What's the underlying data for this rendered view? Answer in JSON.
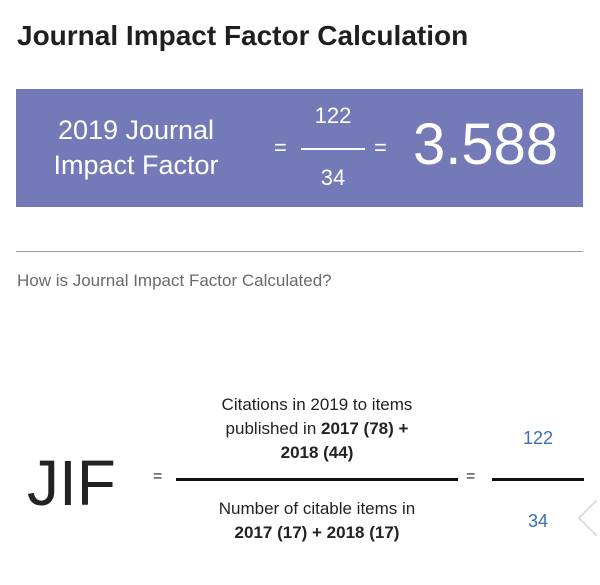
{
  "title": "Journal Impact Factor Calculation",
  "summary": {
    "label_line1": "2019 Journal",
    "label_line2": "Impact Factor",
    "equals": "=",
    "numerator": "122",
    "denominator": "34",
    "result": "3.588",
    "background": "#7479b8"
  },
  "subtitle": "How is Journal Impact Factor Calculated?",
  "formula": {
    "lhs": "JIF",
    "equals": "=",
    "numerator": {
      "line1": "Citations in 2019 to items",
      "line2_a": "published in ",
      "line2_b": "2017 (78) +",
      "line3": "2018 (44)"
    },
    "denominator": {
      "line1": "Number of citable items in",
      "line2": "2017 (17) + 2018 (17)"
    },
    "value_numerator": "122",
    "value_denominator": "34",
    "value_color": "#3a6fb5"
  }
}
